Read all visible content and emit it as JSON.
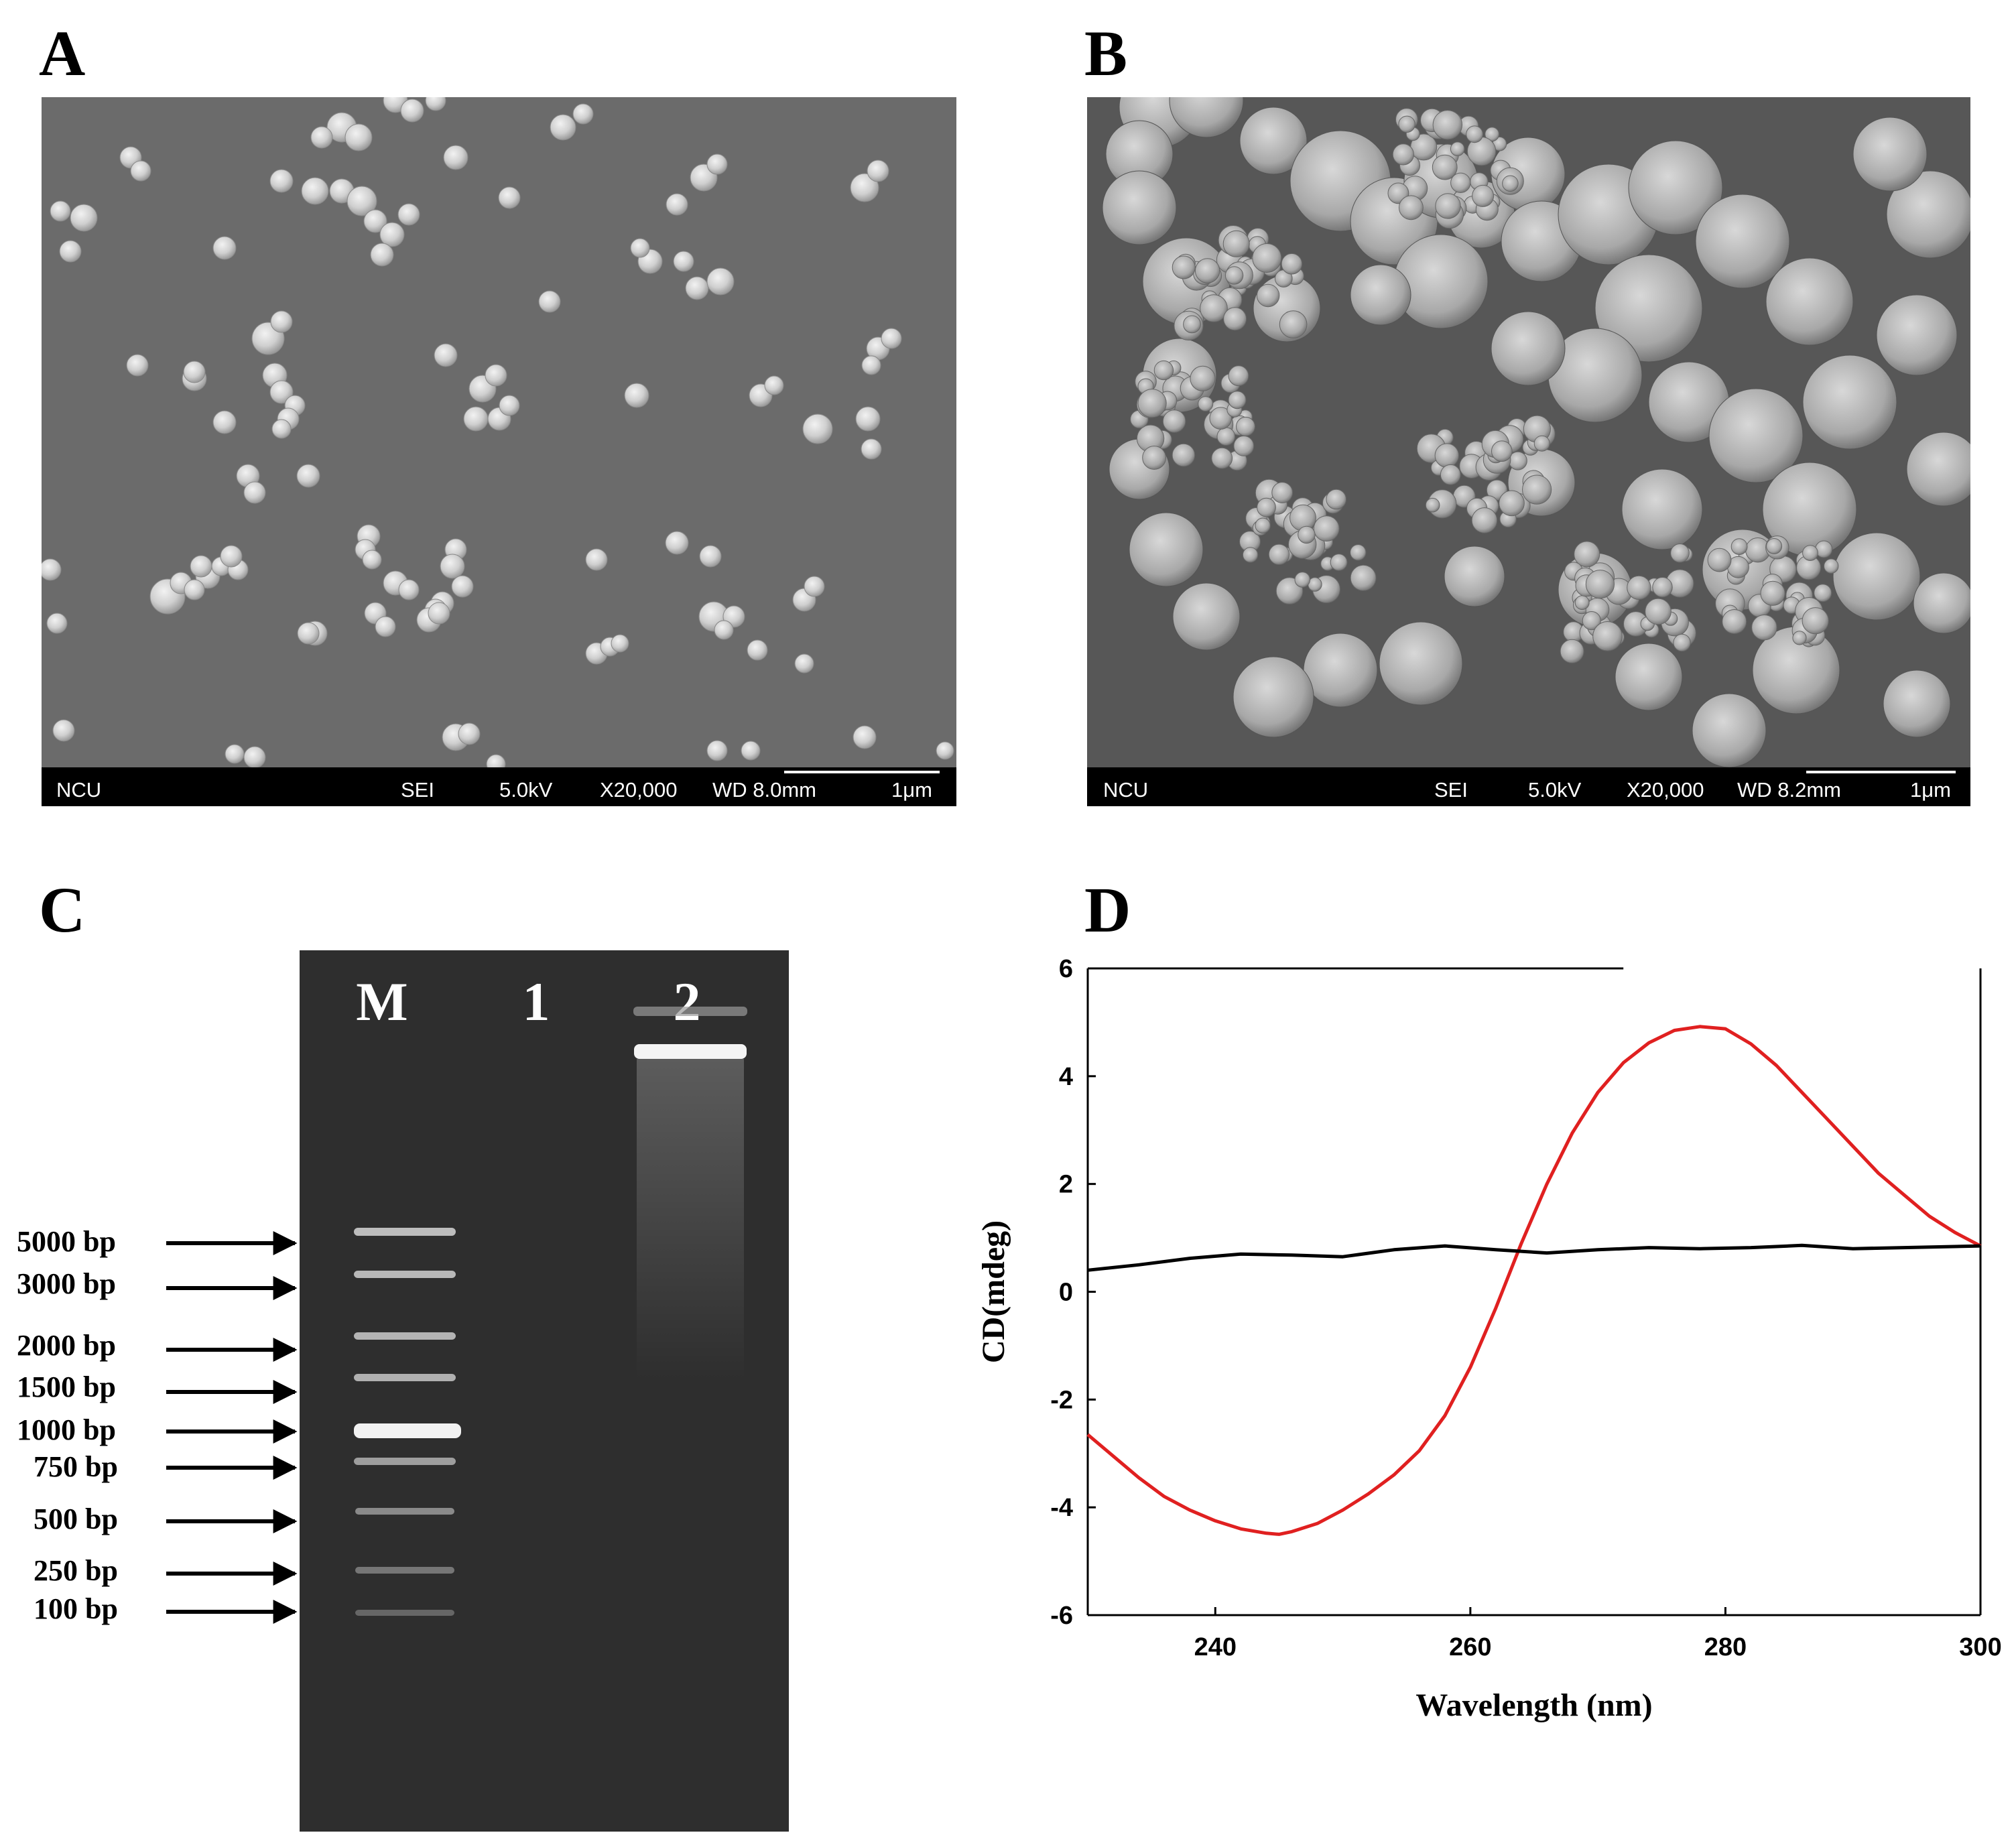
{
  "panels": {
    "A": {
      "letter": "A",
      "caption": {
        "left": "NCU",
        "mode": "SEI",
        "voltage": "5.0kV",
        "magnification": "X20,000",
        "wd": "WD 8.0mm",
        "scale": "1μm"
      }
    },
    "B": {
      "letter": "B",
      "caption": {
        "left": "NCU",
        "mode": "SEI",
        "voltage": "5.0kV",
        "magnification": "X20,000",
        "wd": "WD 8.2mm",
        "scale": "1μm"
      }
    },
    "C": {
      "letter": "C",
      "lanes": [
        "M",
        "1",
        "2"
      ],
      "ladder": [
        "5000 bp",
        "3000 bp",
        "2000 bp",
        "1500 bp",
        "1000 bp",
        "750 bp",
        "500 bp",
        "250 bp",
        "100 bp"
      ]
    },
    "D": {
      "letter": "D"
    }
  },
  "chart_data": {
    "type": "line",
    "title": "",
    "xlabel": "Wavelength (nm)",
    "ylabel": "CD(mdeg)",
    "xlim": [
      230,
      300
    ],
    "ylim": [
      -6,
      6
    ],
    "xticks": [
      240,
      260,
      280,
      300
    ],
    "yticks": [
      -6,
      -4,
      -2,
      0,
      2,
      4,
      6
    ],
    "grid": false,
    "series": [
      {
        "color": "#e02020",
        "x": [
          230,
          232,
          234,
          236,
          238,
          240,
          242,
          244,
          245,
          246,
          248,
          250,
          252,
          254,
          256,
          258,
          260,
          262,
          263,
          264,
          266,
          268,
          270,
          272,
          274,
          276,
          278,
          280,
          282,
          284,
          286,
          288,
          290,
          292,
          294,
          296,
          298,
          300
        ],
        "y": [
          -2.65,
          -3.05,
          -3.45,
          -3.8,
          -4.05,
          -4.25,
          -4.4,
          -4.48,
          -4.5,
          -4.45,
          -4.3,
          -4.05,
          -3.75,
          -3.4,
          -2.95,
          -2.3,
          -1.4,
          -0.3,
          0.3,
          0.9,
          2.0,
          2.95,
          3.7,
          4.25,
          4.62,
          4.85,
          4.92,
          4.88,
          4.6,
          4.2,
          3.7,
          3.2,
          2.7,
          2.2,
          1.8,
          1.4,
          1.1,
          0.85
        ]
      },
      {
        "color": "#000000",
        "x": [
          230,
          234,
          238,
          242,
          246,
          250,
          254,
          258,
          262,
          266,
          270,
          274,
          278,
          282,
          286,
          290,
          294,
          300
        ],
        "y": [
          0.4,
          0.5,
          0.62,
          0.7,
          0.68,
          0.65,
          0.78,
          0.85,
          0.78,
          0.72,
          0.78,
          0.82,
          0.8,
          0.82,
          0.86,
          0.8,
          0.82,
          0.85
        ]
      }
    ]
  }
}
